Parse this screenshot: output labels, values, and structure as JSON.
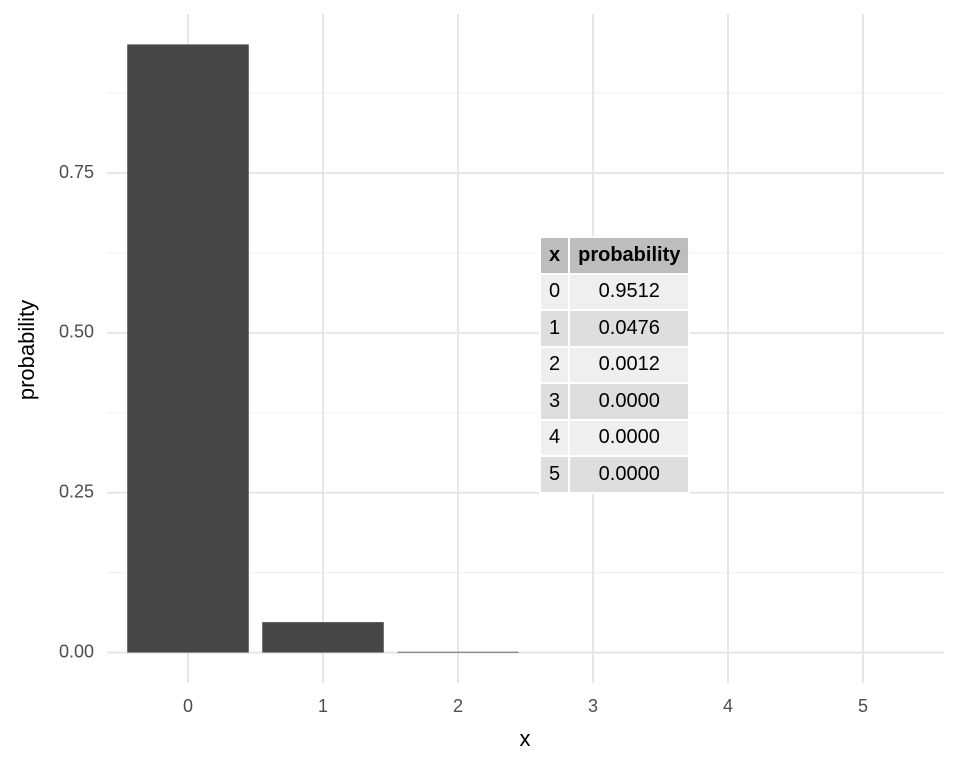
{
  "chart_data": {
    "type": "bar",
    "categories": [
      "0",
      "1",
      "2",
      "3",
      "4",
      "5"
    ],
    "values": [
      0.9512,
      0.0476,
      0.0012,
      0,
      0,
      0
    ],
    "color": "#474747",
    "xlabel": "x",
    "ylabel": "probability",
    "ylim": [
      -0.0476,
      0.9988
    ],
    "yticks": [
      {
        "value": 0,
        "label": "0.00"
      },
      {
        "value": 0.25,
        "label": "0.25"
      },
      {
        "value": 0.5,
        "label": "0.50"
      },
      {
        "value": 0.75,
        "label": "0.75"
      }
    ],
    "y_minor_ticks": [
      0.125,
      0.375,
      0.625,
      0.875
    ],
    "grid": true,
    "table": {
      "columns": [
        "x",
        "probability"
      ],
      "rows": [
        [
          "0",
          "0.9512"
        ],
        [
          "1",
          "0.0476"
        ],
        [
          "2",
          "0.0012"
        ],
        [
          "3",
          "0.0000"
        ],
        [
          "4",
          "0.0000"
        ],
        [
          "5",
          "0.0000"
        ]
      ]
    }
  }
}
